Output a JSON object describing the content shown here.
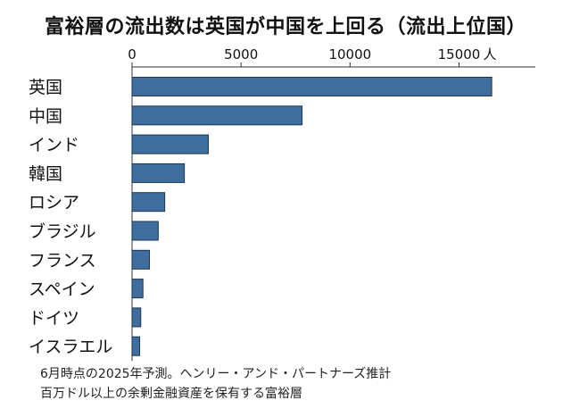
{
  "title": "富裕層の流出数は英国が中国を上回る（流出上位国）",
  "notes": [
    "6月時点の2025年予測。ヘンリー・アンド・パートナーズ推計",
    "百万ドル以上の余剰金融資産を保有する富裕層"
  ],
  "chart_data": {
    "type": "bar",
    "orientation": "horizontal",
    "title": "富裕層の流出数は英国が中国を上回る（流出上位国）",
    "unit_label": "人",
    "categories": [
      "英国",
      "中国",
      "インド",
      "韓国",
      "ロシア",
      "ブラジル",
      "フランス",
      "スペイン",
      "ドイツ",
      "イスラエル"
    ],
    "values": [
      16500,
      7800,
      3500,
      2400,
      1500,
      1200,
      800,
      500,
      400,
      350
    ],
    "xlim": [
      0,
      18500
    ],
    "xticks": [
      0,
      5000,
      10000,
      15000
    ],
    "xtick_labels": [
      "0",
      "5000",
      "10000",
      "15000"
    ],
    "grid": false,
    "bar_color": "#3f6d9e",
    "bar_border_color": "#1c3550"
  }
}
